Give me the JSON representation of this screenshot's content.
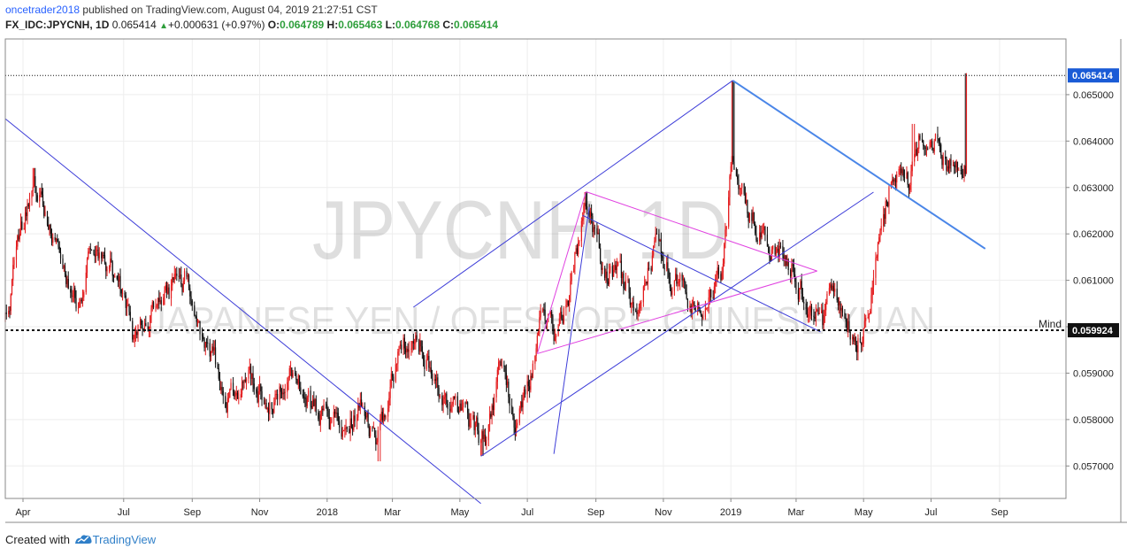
{
  "header": {
    "author": "oncetrader2018",
    "published_text": "published on TradingView.com, August 04, 2019 21:27:51 CST",
    "symbol": "FX_IDC:JPYCNH, 1D",
    "price": "0.065414",
    "change": "+0.000631 (+0.97%)",
    "o_label": "O:",
    "o_value": "0.064789",
    "h_label": "H:",
    "h_value": "0.065463",
    "l_label": "L:",
    "l_value": "0.064768",
    "c_label": "C:",
    "c_value": "0.065414"
  },
  "footer": {
    "created_with": "Created with",
    "brand": "TradingView"
  },
  "colors": {
    "up": "#e31a1c",
    "down": "#111111",
    "trendline": "#3c3cd8",
    "pink": "#e040e0",
    "price_label_bg": "#1a5bd6"
  },
  "chart_data": {
    "type": "candlestick",
    "watermark_symbol": "JPYCNH, 1D",
    "watermark_name": "JAPANESE YEN / OFFSHORE CHINESE YUAN",
    "y_ticks": [
      "0.065000",
      "0.064000",
      "0.063000",
      "0.062000",
      "0.061000",
      "0.060000",
      "0.059000",
      "0.058000",
      "0.057000"
    ],
    "y_tick_values": [
      0.065,
      0.064,
      0.063,
      0.062,
      0.061,
      0.06,
      0.059,
      0.058,
      0.057
    ],
    "ylim": [
      0.0563,
      0.0662
    ],
    "x_ticks": [
      "Apr",
      "Jul",
      "Sep",
      "Nov",
      "2018",
      "Mar",
      "May",
      "Jul",
      "Sep",
      "Nov",
      "2019",
      "Mar",
      "May",
      "Jul",
      "Sep"
    ],
    "x_tick_dates": [
      "2017-04-01",
      "2017-07-01",
      "2017-09-01",
      "2017-11-01",
      "2018-01-01",
      "2018-03-01",
      "2018-05-01",
      "2018-07-01",
      "2018-09-01",
      "2018-11-01",
      "2019-01-01",
      "2019-03-01",
      "2019-05-01",
      "2019-07-01",
      "2019-09-01"
    ],
    "xlim": [
      "2017-03-16",
      "2019-10-31"
    ],
    "last_price": {
      "label": "0.065414",
      "value": 0.065414
    },
    "hline": {
      "label": "0.059924",
      "value": 0.059924,
      "name": "Mind"
    },
    "path": [
      [
        "2017-03-16",
        0.0601
      ],
      [
        "2017-03-30",
        0.0621
      ],
      [
        "2017-04-11",
        0.0632
      ],
      [
        "2017-04-20",
        0.0627
      ],
      [
        "2017-05-01",
        0.0617
      ],
      [
        "2017-05-20",
        0.0605
      ],
      [
        "2017-06-01",
        0.0618
      ],
      [
        "2017-06-20",
        0.0614
      ],
      [
        "2017-07-10",
        0.0598
      ],
      [
        "2017-08-01",
        0.0604
      ],
      [
        "2017-08-25",
        0.0611
      ],
      [
        "2017-09-15",
        0.0595
      ],
      [
        "2017-10-01",
        0.0586
      ],
      [
        "2017-10-25",
        0.0588
      ],
      [
        "2017-11-15",
        0.0584
      ],
      [
        "2017-12-01",
        0.059
      ],
      [
        "2017-12-25",
        0.058
      ],
      [
        "2018-01-15",
        0.0578
      ],
      [
        "2018-02-01",
        0.0583
      ],
      [
        "2018-02-15",
        0.0574
      ],
      [
        "2018-03-01",
        0.059
      ],
      [
        "2018-03-20",
        0.06
      ],
      [
        "2018-04-01",
        0.0594
      ],
      [
        "2018-04-20",
        0.0586
      ],
      [
        "2018-05-05",
        0.058
      ],
      [
        "2018-05-25",
        0.0575
      ],
      [
        "2018-06-05",
        0.059
      ],
      [
        "2018-06-20",
        0.058
      ],
      [
        "2018-07-05",
        0.0592
      ],
      [
        "2018-07-15",
        0.0603
      ],
      [
        "2018-07-28",
        0.0597
      ],
      [
        "2018-08-10",
        0.061
      ],
      [
        "2018-08-22",
        0.0626
      ],
      [
        "2018-09-05",
        0.0615
      ],
      [
        "2018-09-20",
        0.061
      ],
      [
        "2018-10-05",
        0.0605
      ],
      [
        "2018-10-25",
        0.0617
      ],
      [
        "2018-11-10",
        0.061
      ],
      [
        "2018-11-25",
        0.0607
      ],
      [
        "2018-12-10",
        0.0605
      ],
      [
        "2018-12-25",
        0.0612
      ],
      [
        "2019-01-02",
        0.0636
      ],
      [
        "2019-01-10",
        0.0628
      ],
      [
        "2019-01-25",
        0.0621
      ],
      [
        "2019-02-10",
        0.0617
      ],
      [
        "2019-02-25",
        0.0614
      ],
      [
        "2019-03-10",
        0.0605
      ],
      [
        "2019-03-25",
        0.06
      ],
      [
        "2019-04-05",
        0.0609
      ],
      [
        "2019-04-15",
        0.0603
      ],
      [
        "2019-04-28",
        0.0598
      ],
      [
        "2019-05-05",
        0.0603
      ],
      [
        "2019-05-10",
        0.0612
      ],
      [
        "2019-05-25",
        0.0631
      ],
      [
        "2019-06-10",
        0.063
      ],
      [
        "2019-06-20",
        0.064
      ],
      [
        "2019-07-05",
        0.0638
      ],
      [
        "2019-07-15",
        0.0634
      ],
      [
        "2019-07-25",
        0.0636
      ],
      [
        "2019-08-01",
        0.0634
      ],
      [
        "2019-08-02",
        0.06541
      ]
    ],
    "pivots": [
      {
        "date": "2017-04-11",
        "value": 0.06342,
        "kind": "high"
      },
      {
        "date": "2018-02-17",
        "value": 0.0571,
        "kind": "low"
      },
      {
        "date": "2018-05-21",
        "value": 0.05722,
        "kind": "low"
      },
      {
        "date": "2018-08-23",
        "value": 0.0629,
        "kind": "high"
      },
      {
        "date": "2019-01-03",
        "value": 0.0653,
        "kind": "high"
      },
      {
        "date": "2019-04-24",
        "value": 0.0596,
        "kind": "low"
      },
      {
        "date": "2019-06-15",
        "value": 0.06437,
        "kind": "high"
      },
      {
        "date": "2019-08-02",
        "value": 0.06546,
        "kind": "high"
      }
    ],
    "trendlines": [
      {
        "from": [
          "2017-03-16",
          0.06448
        ],
        "to": [
          "2018-05-20",
          0.05619
        ],
        "style": "thin"
      },
      {
        "from": [
          "2018-03-20",
          0.06042
        ],
        "to": [
          "2019-01-03",
          0.06531
        ],
        "style": "thin"
      },
      {
        "from": [
          "2018-05-20",
          0.05721
        ],
        "to": [
          "2019-05-10",
          0.0629
        ],
        "style": "thin"
      },
      {
        "from": [
          "2018-07-25",
          0.05726
        ],
        "to": [
          "2018-08-26",
          0.06258
        ],
        "style": "thin"
      },
      {
        "from": [
          "2018-08-20",
          0.0624
        ],
        "to": [
          "2019-03-23",
          0.05989
        ],
        "style": "thin"
      },
      {
        "from": [
          "2019-01-03",
          0.0653
        ],
        "to": [
          "2019-08-19",
          0.06168
        ],
        "style": "thick"
      }
    ],
    "pink_triangle": {
      "apex": [
        "2018-08-23",
        0.06291
      ],
      "upper_end": [
        "2019-03-20",
        0.0612
      ],
      "lower_start": [
        "2018-07-10",
        0.05942
      ]
    }
  }
}
